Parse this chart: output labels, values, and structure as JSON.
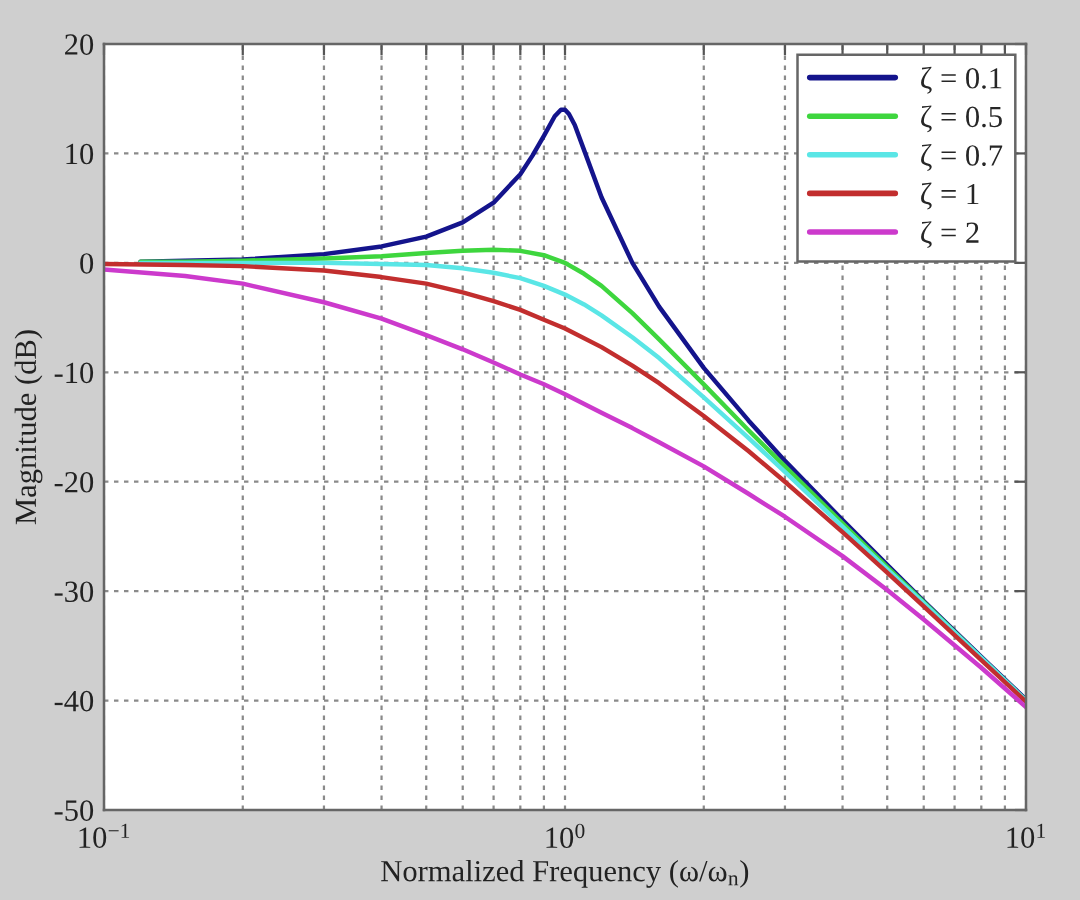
{
  "chart_data": {
    "type": "line",
    "xlabel": "Normalized Frequency (ω/ω$_{n}$)",
    "ylabel": "Magnitude (dB)",
    "log": "x",
    "xlim": [
      0.1,
      10
    ],
    "ylim": [
      -50,
      20
    ],
    "xticks": [
      {
        "value": 0.1,
        "label": "10$^{−1}$"
      },
      {
        "value": 0.2,
        "label": null
      },
      {
        "value": 0.3,
        "label": null
      },
      {
        "value": 0.4,
        "label": null
      },
      {
        "value": 0.5,
        "label": null
      },
      {
        "value": 0.6,
        "label": null
      },
      {
        "value": 0.7,
        "label": null
      },
      {
        "value": 0.8,
        "label": null
      },
      {
        "value": 0.9,
        "label": null
      },
      {
        "value": 1,
        "label": "10$^{0}$"
      },
      {
        "value": 2,
        "label": null
      },
      {
        "value": 3,
        "label": null
      },
      {
        "value": 4,
        "label": null
      },
      {
        "value": 5,
        "label": null
      },
      {
        "value": 6,
        "label": null
      },
      {
        "value": 7,
        "label": null
      },
      {
        "value": 8,
        "label": null
      },
      {
        "value": 9,
        "label": null
      },
      {
        "value": 10,
        "label": "10$^{1}$"
      }
    ],
    "yticks": [
      -50,
      -40,
      -30,
      -20,
      -10,
      0,
      10,
      20
    ],
    "grid": true,
    "legend": "top right",
    "line_style": "solid",
    "series": [
      {
        "name": "ζ = 0.1",
        "color": "#14148c",
        "x": [
          0.12,
          0.15,
          0.2,
          0.3,
          0.4,
          0.5,
          0.6,
          0.7,
          0.8,
          0.85,
          0.9,
          0.95,
          0.98,
          1.0,
          1.02,
          1.05,
          1.1,
          1.2,
          1.4,
          1.6,
          2,
          2.5,
          3,
          4,
          5,
          6,
          8,
          10
        ],
        "values": [
          0.1,
          0.2,
          0.3,
          0.8,
          1.5,
          2.4,
          3.7,
          5.5,
          8.1,
          9.8,
          11.6,
          13.4,
          14.0,
          14.0,
          13.6,
          12.6,
          10.3,
          6.0,
          0.0,
          -4.0,
          -9.6,
          -14.4,
          -18.1,
          -23.5,
          -27.6,
          -30.9,
          -36.0,
          -39.9
        ]
      },
      {
        "name": "ζ = 0.5",
        "color": "#3ed63e",
        "x": [
          0.12,
          0.15,
          0.2,
          0.3,
          0.4,
          0.5,
          0.6,
          0.7,
          0.8,
          0.9,
          1.0,
          1.1,
          1.2,
          1.4,
          1.6,
          2,
          2.5,
          3,
          4,
          5,
          6,
          8,
          10
        ],
        "values": [
          0.1,
          0.1,
          0.2,
          0.4,
          0.6,
          0.9,
          1.1,
          1.2,
          1.1,
          0.7,
          0.0,
          -1.0,
          -2.1,
          -4.6,
          -7.0,
          -11.1,
          -15.3,
          -18.6,
          -23.8,
          -27.8,
          -31.0,
          -36.1,
          -40.0
        ]
      },
      {
        "name": "ζ = 0.7",
        "color": "#5ae6e6",
        "x": [
          0.12,
          0.15,
          0.2,
          0.3,
          0.4,
          0.5,
          0.6,
          0.7,
          0.8,
          0.9,
          1.0,
          1.1,
          1.2,
          1.4,
          1.6,
          2,
          2.5,
          3,
          4,
          5,
          6,
          8,
          10
        ],
        "values": [
          0.0,
          0.0,
          0.0,
          0.0,
          -0.1,
          -0.2,
          -0.5,
          -0.9,
          -1.4,
          -2.1,
          -2.9,
          -3.8,
          -4.8,
          -6.8,
          -8.7,
          -12.3,
          -16.0,
          -19.1,
          -24.1,
          -28.0,
          -31.1,
          -36.1,
          -40.0
        ]
      },
      {
        "name": "ζ = 1",
        "color": "#c22e2e",
        "x": [
          0.1,
          0.15,
          0.2,
          0.3,
          0.4,
          0.5,
          0.6,
          0.7,
          0.8,
          0.9,
          1.0,
          1.2,
          1.4,
          1.6,
          2,
          2.5,
          3,
          4,
          5,
          6,
          8,
          10
        ],
        "values": [
          -0.1,
          -0.2,
          -0.3,
          -0.7,
          -1.3,
          -1.9,
          -2.7,
          -3.5,
          -4.3,
          -5.2,
          -6.0,
          -7.7,
          -9.4,
          -11.0,
          -14.0,
          -17.2,
          -20.0,
          -24.6,
          -28.3,
          -31.4,
          -36.3,
          -40.1
        ]
      },
      {
        "name": "ζ = 2",
        "color": "#cc3acc",
        "x": [
          0.1,
          0.15,
          0.2,
          0.3,
          0.4,
          0.5,
          0.6,
          0.7,
          0.8,
          0.9,
          1.0,
          1.2,
          1.4,
          1.6,
          2,
          2.5,
          3,
          4,
          5,
          6,
          8,
          10
        ],
        "values": [
          -0.6,
          -1.2,
          -1.9,
          -3.6,
          -5.1,
          -6.6,
          -7.9,
          -9.1,
          -10.2,
          -11.1,
          -12.0,
          -13.7,
          -15.1,
          -16.4,
          -18.6,
          -21.1,
          -23.2,
          -26.8,
          -29.9,
          -32.6,
          -37.0,
          -40.6
        ]
      }
    ]
  }
}
